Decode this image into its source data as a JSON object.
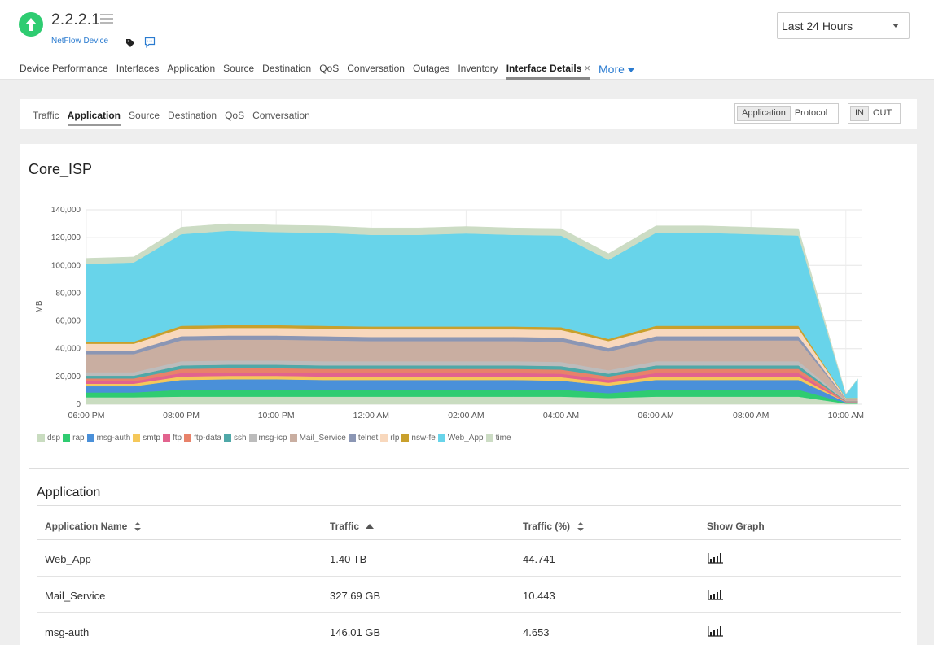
{
  "device": {
    "name": "2.2.2.1",
    "type": "NetFlow Device",
    "status_color": "#2ecc71",
    "status_icon": "arrow-up-icon"
  },
  "time_range": {
    "selected": "Last 24 Hours"
  },
  "main_tabs": [
    {
      "label": "Device Performance"
    },
    {
      "label": "Interfaces"
    },
    {
      "label": "Application"
    },
    {
      "label": "Source"
    },
    {
      "label": "Destination"
    },
    {
      "label": "QoS"
    },
    {
      "label": "Conversation"
    },
    {
      "label": "Outages"
    },
    {
      "label": "Inventory"
    },
    {
      "label": "Interface Details",
      "active": true,
      "close": "×"
    }
  ],
  "more_label": "More",
  "sub_tabs": [
    {
      "label": "Traffic"
    },
    {
      "label": "Application",
      "active": true
    },
    {
      "label": "Source"
    },
    {
      "label": "Destination"
    },
    {
      "label": "QoS"
    },
    {
      "label": "Conversation"
    }
  ],
  "view_toggle": {
    "options": [
      "Application",
      "Protocol"
    ],
    "selected": "Application"
  },
  "direction_toggle": {
    "options": [
      "IN",
      "OUT"
    ],
    "selected": "IN"
  },
  "panel": {
    "title": "Core_ISP"
  },
  "chart_data": {
    "type": "area",
    "stacked": true,
    "title": "",
    "ylabel": "MB",
    "xlabel": "",
    "ylim": [
      0,
      140000
    ],
    "yticks": [
      "0",
      "20,000",
      "40,000",
      "60,000",
      "80,000",
      "100,000",
      "120,000",
      "140,000"
    ],
    "x": [
      "06:00 PM",
      "07:00 PM",
      "08:00 PM",
      "09:00 PM",
      "10:00 PM",
      "11:00 PM",
      "12:00 AM",
      "01:00 AM",
      "02:00 AM",
      "03:00 AM",
      "04:00 AM",
      "05:00 AM",
      "06:00 AM",
      "07:00 AM",
      "08:00 AM",
      "09:00 AM",
      "10:00 AM",
      "10:15 AM"
    ],
    "xticks": [
      "06:00 PM",
      "08:00 PM",
      "10:00 PM",
      "12:00 AM",
      "02:00 AM",
      "04:00 AM",
      "06:00 AM",
      "08:00 AM",
      "10:00 AM"
    ],
    "legend_position": "bottom",
    "grid": true,
    "series": [
      {
        "name": "dsp",
        "color": "#c9dcc0",
        "values": [
          5000,
          5000,
          5500,
          5500,
          5500,
          5500,
          5500,
          5500,
          5500,
          5500,
          5500,
          4500,
          5500,
          5500,
          5500,
          5500,
          500,
          500
        ]
      },
      {
        "name": "rap",
        "color": "#2fcc71",
        "values": [
          3500,
          3500,
          5000,
          5000,
          5000,
          5000,
          5000,
          5000,
          5000,
          5000,
          5000,
          3500,
          5000,
          5000,
          5000,
          5000,
          500,
          500
        ]
      },
      {
        "name": "msg-auth",
        "color": "#4a90d9",
        "values": [
          4500,
          4500,
          7000,
          7500,
          7500,
          7000,
          7000,
          7000,
          7000,
          7000,
          6500,
          5500,
          7000,
          7000,
          7000,
          7000,
          500,
          500
        ]
      },
      {
        "name": "smtp",
        "color": "#f5c85a",
        "values": [
          1800,
          1800,
          2500,
          2500,
          2500,
          2500,
          2500,
          2500,
          2500,
          2500,
          2500,
          2000,
          2500,
          2500,
          2500,
          2500,
          200,
          200
        ]
      },
      {
        "name": "ftp",
        "color": "#e2638e",
        "values": [
          1800,
          1800,
          2500,
          2500,
          2500,
          2500,
          2500,
          2500,
          2500,
          2500,
          2500,
          2000,
          2500,
          2500,
          2500,
          2500,
          200,
          200
        ]
      },
      {
        "name": "ftp-data",
        "color": "#e8826a",
        "values": [
          2000,
          2000,
          3000,
          3000,
          3000,
          3000,
          3000,
          3000,
          3000,
          3000,
          3000,
          2500,
          3000,
          3000,
          3000,
          3000,
          200,
          200
        ]
      },
      {
        "name": "ssh",
        "color": "#4fa8a8",
        "values": [
          2000,
          2000,
          2500,
          2500,
          2500,
          2500,
          2500,
          2500,
          2500,
          2500,
          2500,
          2000,
          2500,
          2500,
          2500,
          2500,
          200,
          200
        ]
      },
      {
        "name": "msg-icp",
        "color": "#bcbcbc",
        "values": [
          2500,
          2500,
          3000,
          3000,
          3000,
          3000,
          3000,
          3000,
          3000,
          3000,
          3000,
          2500,
          3000,
          3000,
          3000,
          3000,
          300,
          300
        ]
      },
      {
        "name": "Mail_Service",
        "color": "#c9aea1",
        "values": [
          13000,
          13000,
          15000,
          15000,
          15000,
          15000,
          14500,
          14500,
          14500,
          14500,
          14500,
          13500,
          15000,
          15000,
          15000,
          15000,
          1000,
          1000
        ]
      },
      {
        "name": "telnet",
        "color": "#8b96b4",
        "values": [
          2500,
          2500,
          3000,
          3000,
          3000,
          3000,
          3000,
          3000,
          3000,
          3000,
          3000,
          2500,
          3000,
          3000,
          3000,
          3000,
          300,
          300
        ]
      },
      {
        "name": "rlp",
        "color": "#f8d8bd",
        "values": [
          5000,
          5000,
          5500,
          5500,
          5500,
          5500,
          5500,
          5500,
          5500,
          5500,
          5500,
          5000,
          5500,
          5500,
          5500,
          5500,
          500,
          500
        ]
      },
      {
        "name": "nsw-fe",
        "color": "#c9a02c",
        "values": [
          1500,
          1500,
          2000,
          2000,
          2000,
          2000,
          2000,
          2000,
          2000,
          2000,
          2000,
          1500,
          2000,
          2000,
          2000,
          2000,
          200,
          200
        ]
      },
      {
        "name": "Web_App",
        "color": "#68d4ea",
        "values": [
          56000,
          57000,
          66000,
          68000,
          67000,
          67000,
          66000,
          66000,
          67000,
          66000,
          66000,
          57000,
          67000,
          67000,
          66000,
          65000,
          2500,
          13500
        ]
      },
      {
        "name": "time",
        "color": "#ccdcc4",
        "values": [
          4000,
          4000,
          5000,
          5000,
          5000,
          5000,
          5000,
          5000,
          5000,
          5000,
          5000,
          4500,
          5000,
          5000,
          5000,
          5000,
          200,
          200
        ]
      }
    ]
  },
  "app_table": {
    "title": "Application",
    "columns": [
      "Application Name",
      "Traffic",
      "Traffic (%)",
      "Show Graph"
    ],
    "rows": [
      {
        "name": "Web_App",
        "traffic": "1.40 TB",
        "percent": "44.741"
      },
      {
        "name": "Mail_Service",
        "traffic": "327.69 GB",
        "percent": "10.443"
      },
      {
        "name": "msg-auth",
        "traffic": "146.01 GB",
        "percent": "4.653"
      }
    ],
    "graph_icon": "bar-graph-icon"
  }
}
